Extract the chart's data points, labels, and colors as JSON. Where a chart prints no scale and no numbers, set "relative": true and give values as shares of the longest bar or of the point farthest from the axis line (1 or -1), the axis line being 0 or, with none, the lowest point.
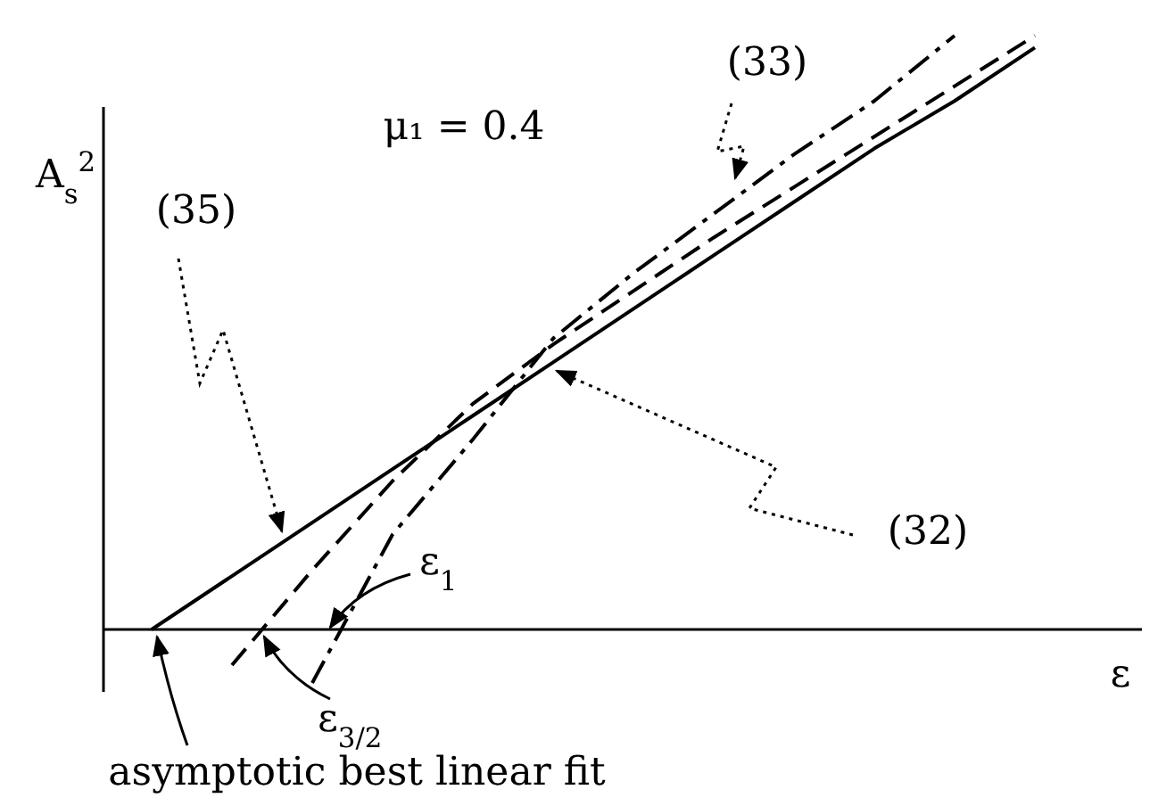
{
  "chart_data": {
    "type": "line",
    "relative": true,
    "title": "μ₁ = 0.4",
    "xlabel": "ε",
    "ylabel": "A$_{s}$$^{2}$",
    "categories": [
      null,
      null,
      null,
      null,
      null,
      null,
      null,
      null,
      null,
      null,
      null,
      null
    ],
    "series": [
      {
        "color": "#000000",
        "line_style": "solid",
        "values": [
          0,
          0.09,
          0.18,
          0.27,
          0.36,
          0.45,
          0.54,
          0.63,
          0.72,
          0.81,
          0.89,
          0.98
        ]
      },
      {
        "color": "#000000",
        "line_style": "dashed",
        "values": [
          null,
          -0.06,
          0.1,
          0.25,
          0.38,
          0.48,
          0.57,
          0.66,
          0.745,
          0.83,
          0.915,
          1.0
        ]
      },
      {
        "color": "#000000",
        "line_style": "dashdot",
        "values": [
          null,
          null,
          -0.09,
          0.16,
          0.32,
          0.49,
          0.6,
          0.7,
          0.8,
          0.89,
          1.0,
          null
        ]
      }
    ],
    "annotations": [
      "(35)",
      "(33)",
      "(32)",
      "ε$_{1}$",
      "ε$_{3/2}$",
      "asymptotic best linear fit"
    ],
    "marker": "none"
  }
}
